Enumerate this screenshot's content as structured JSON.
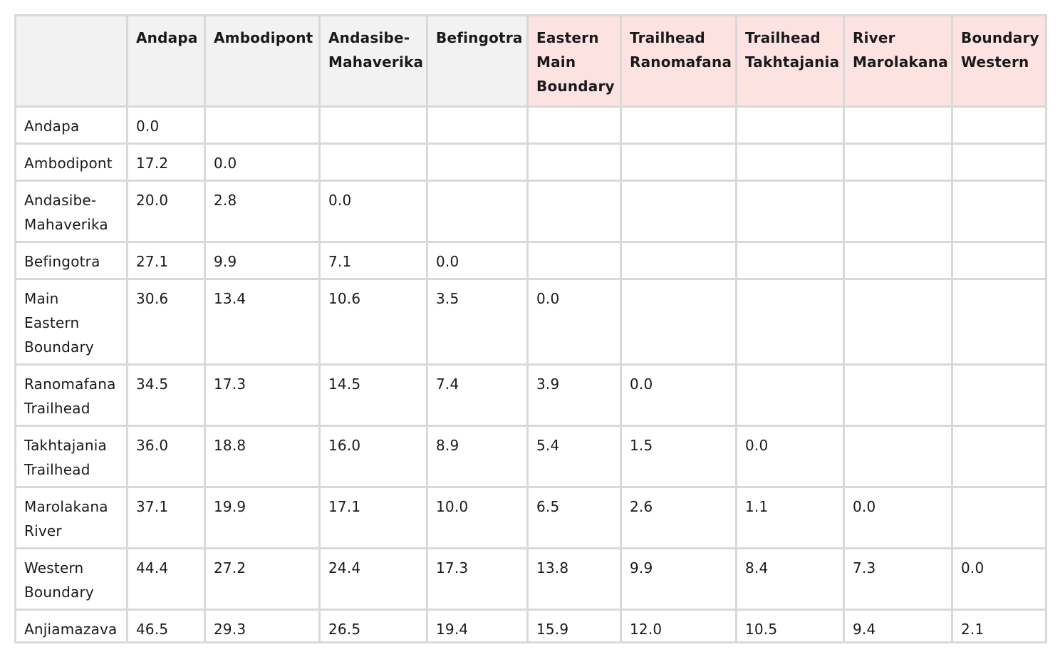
{
  "table": {
    "corner": "",
    "columns": [
      {
        "label": "Andapa",
        "highlight": false
      },
      {
        "label": "Ambodipont",
        "highlight": false
      },
      {
        "label": "Andasibe-Mahaverika",
        "highlight": false
      },
      {
        "label": "Befingotra",
        "highlight": false
      },
      {
        "label": "Eastern Main Boundary",
        "highlight": true
      },
      {
        "label": "Trailhead Ranomafana",
        "highlight": true
      },
      {
        "label": "Trailhead Takhtajania",
        "highlight": true
      },
      {
        "label": "River Marolakana",
        "highlight": true
      },
      {
        "label": "Boundary Western",
        "highlight": true
      }
    ],
    "rows": [
      {
        "label": "Andapa",
        "cells": [
          "0.0",
          "",
          "",
          "",
          "",
          "",
          "",
          "",
          ""
        ]
      },
      {
        "label": "Ambodipont",
        "cells": [
          "17.2",
          "0.0",
          "",
          "",
          "",
          "",
          "",
          "",
          ""
        ]
      },
      {
        "label": "Andasibe-Mahaverika",
        "cells": [
          "20.0",
          "2.8",
          "0.0",
          "",
          "",
          "",
          "",
          "",
          ""
        ]
      },
      {
        "label": "Befingotra",
        "cells": [
          "27.1",
          "9.9",
          "7.1",
          "0.0",
          "",
          "",
          "",
          "",
          ""
        ]
      },
      {
        "label": "Main Eastern Boundary",
        "cells": [
          "30.6",
          "13.4",
          "10.6",
          "3.5",
          "0.0",
          "",
          "",
          "",
          ""
        ]
      },
      {
        "label": "Ranomafana Trailhead",
        "cells": [
          "34.5",
          "17.3",
          "14.5",
          "7.4",
          "3.9",
          "0.0",
          "",
          "",
          ""
        ]
      },
      {
        "label": "Takhtajania Trailhead",
        "cells": [
          "36.0",
          "18.8",
          "16.0",
          "8.9",
          "5.4",
          "1.5",
          "0.0",
          "",
          ""
        ]
      },
      {
        "label": "Marolakana River",
        "cells": [
          "37.1",
          "19.9",
          "17.1",
          "10.0",
          "6.5",
          "2.6",
          "1.1",
          "0.0",
          ""
        ]
      },
      {
        "label": "Western Boundary",
        "cells": [
          "44.4",
          "27.2",
          "24.4",
          "17.3",
          "13.8",
          "9.9",
          "8.4",
          "7.3",
          "0.0"
        ]
      },
      {
        "label": "Anjiamazava",
        "cells": [
          "46.5",
          "29.3",
          "26.5",
          "19.4",
          "15.9",
          "12.0",
          "10.5",
          "9.4",
          "2.1"
        ]
      }
    ],
    "colors": {
      "header_bg": "#f2f2f2",
      "header_highlight_bg": "#fde2e2",
      "border": "#d9d9d9"
    }
  }
}
